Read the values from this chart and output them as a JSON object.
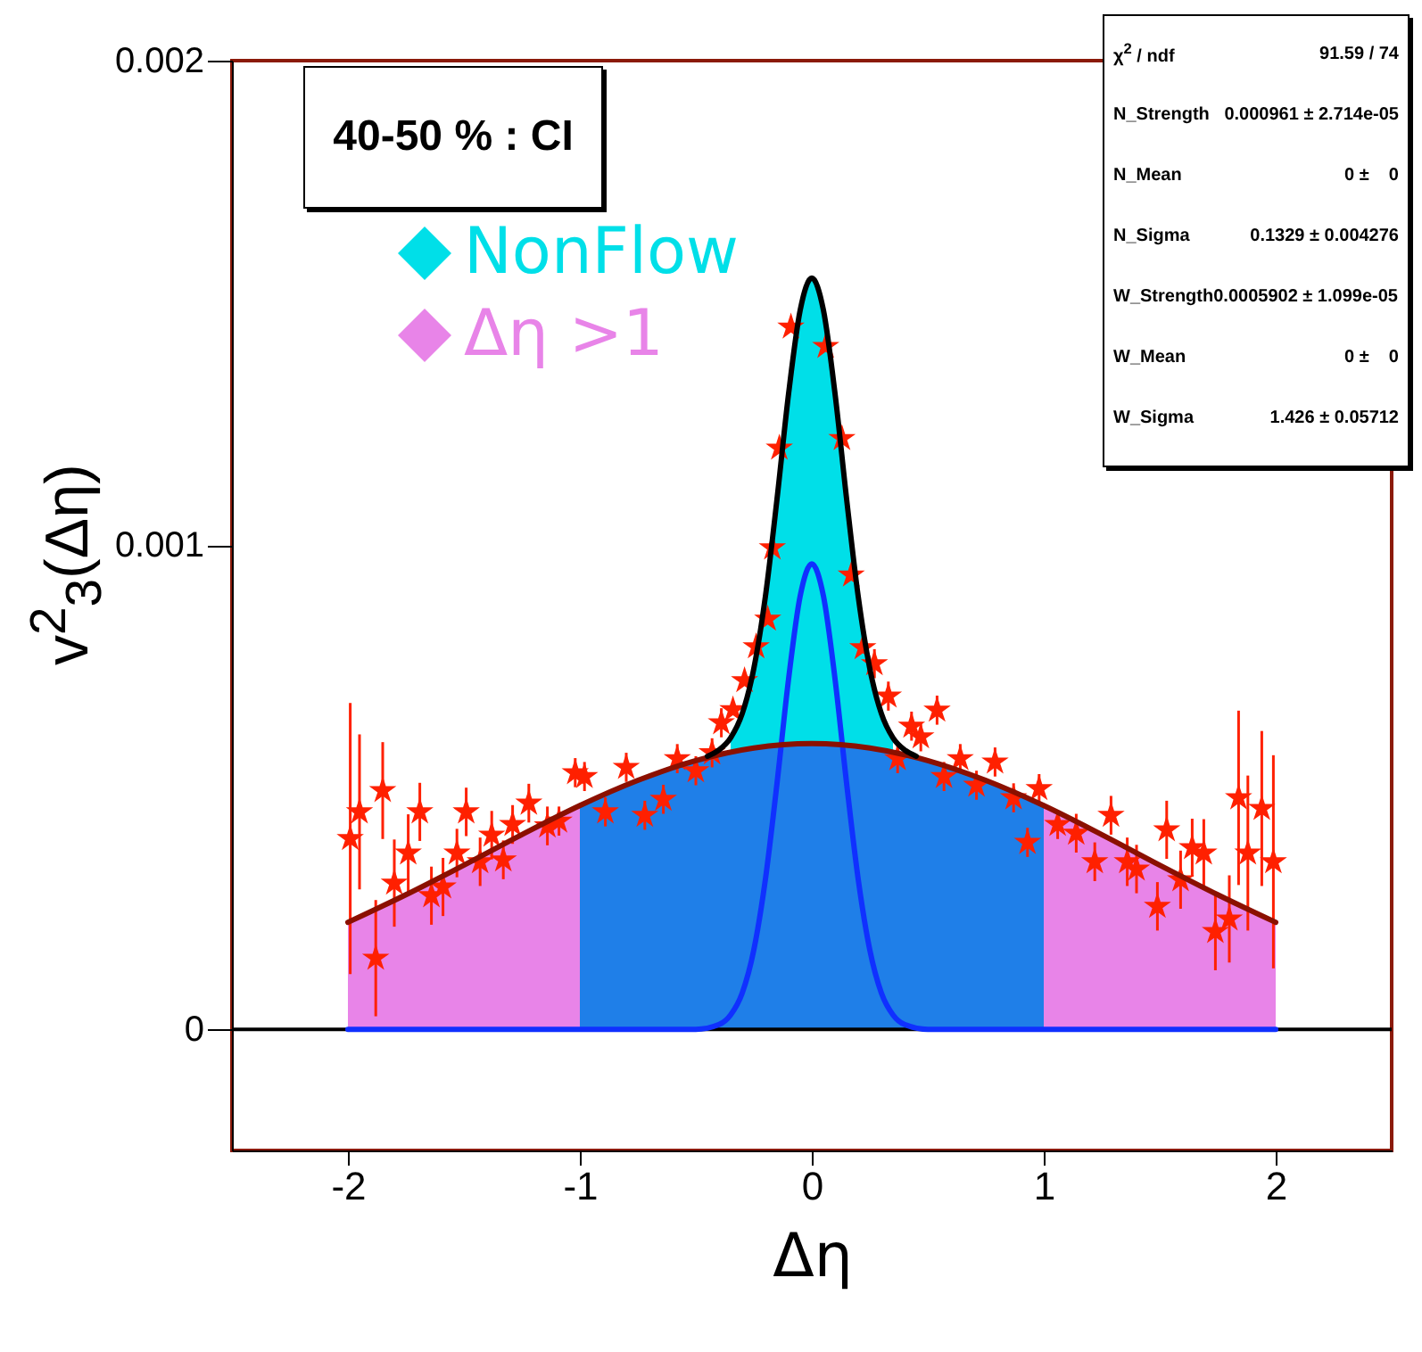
{
  "chart_data": {
    "type": "line",
    "title": "40-50 % : CI",
    "xlabel": "Δη",
    "ylabel": "v$^{2}$$_{3}$(Δη)",
    "annotations": [
      "χ$^{2}$ / ndf\t91.59 / 74",
      "N_Strength\t0.000961 ± 2.714e-05",
      "N_Mean\t0 ±    0",
      "N_Sigma\t0.1329 ± 0.004276",
      "W_Strength0.0005902 ± 1.099e-05",
      "W_Mean\t0 ±    0",
      "W_Sigma\t1.426 ± 0.05712"
    ],
    "xlim": [
      -2.5,
      2.5
    ],
    "xticks": [
      -2,
      -1,
      0,
      1,
      2
    ],
    "ylim": [
      -0.00025,
      0.002
    ],
    "yticks": [
      0,
      0.001,
      0.002
    ],
    "grid": false,
    "legend": "top left",
    "ref_lines": [
      {
        "axis": "y",
        "value": 0,
        "color": "#000000"
      }
    ],
    "series": [
      {
        "type": "area",
        "name": "NonFlow",
        "color": "#00dfe8",
        "x": [
          -0.35,
          -0.3,
          -0.25,
          -0.2,
          -0.15,
          -0.1,
          -0.05,
          0,
          0.05,
          0.1,
          0.15,
          0.2,
          0.25,
          0.3,
          0.35
        ],
        "values": [
          0.000602,
          0.000652,
          0.000745,
          0.000894,
          0.001095,
          0.001313,
          0.001485,
          0.001551,
          0.001485,
          0.001313,
          0.001095,
          0.000894,
          0.000745,
          0.000652,
          0.000602
        ]
      },
      {
        "type": "area",
        "name": "Δη >1",
        "color": "#e884e8",
        "x": [
          -2,
          -1.75,
          -1.5,
          -1.25,
          -1
        ],
        "values": [
          0.000221,
          0.000278,
          0.000339,
          0.000402,
          0.000462
        ]
      },
      {
        "type": "area",
        "color": "#e884e8",
        "x": [
          1,
          1.25,
          1.5,
          1.75,
          2
        ],
        "values": [
          0.000462,
          0.000402,
          0.000339,
          0.000278,
          0.000221
        ]
      },
      {
        "type": "area",
        "color": "#1f7fe8",
        "x": [
          -1,
          -0.75,
          -0.5,
          -0.25,
          0,
          0.25,
          0.5,
          0.75,
          1
        ],
        "values": [
          0.000462,
          0.000514,
          0.000555,
          0.000581,
          0.00059,
          0.000581,
          0.000555,
          0.000514,
          0.000462
        ]
      },
      {
        "color": "#1030ff",
        "x": [
          -2,
          -1,
          -0.6,
          -0.5,
          -0.4,
          -0.35,
          -0.3,
          -0.25,
          -0.2,
          -0.15,
          -0.1,
          -0.05,
          0,
          0.05,
          0.1,
          0.15,
          0.2,
          0.25,
          0.3,
          0.35,
          0.4,
          0.5,
          0.6,
          1,
          2
        ],
        "values": [
          0,
          0,
          0,
          0,
          1e-05,
          3e-05,
          7.5e-05,
          0.000164,
          0.00031,
          0.000508,
          0.000724,
          0.000895,
          0.000961,
          0.000895,
          0.000724,
          0.000508,
          0.00031,
          0.000164,
          7.5e-05,
          3e-05,
          1e-05,
          0,
          0,
          0,
          0
        ]
      },
      {
        "color": "#8b1000",
        "x": [
          -2,
          -1.75,
          -1.5,
          -1.25,
          -1,
          -0.75,
          -0.5,
          -0.25,
          0,
          0.25,
          0.5,
          0.75,
          1,
          1.25,
          1.5,
          1.75,
          2
        ],
        "values": [
          0.000221,
          0.000278,
          0.000339,
          0.000402,
          0.000462,
          0.000514,
          0.000555,
          0.000581,
          0.00059,
          0.000581,
          0.000555,
          0.000514,
          0.000462,
          0.000402,
          0.000339,
          0.000278,
          0.000221
        ]
      },
      {
        "color": "#000000",
        "x": [
          -0.45,
          -0.4,
          -0.35,
          -0.3,
          -0.25,
          -0.2,
          -0.15,
          -0.1,
          -0.05,
          0,
          0.05,
          0.1,
          0.15,
          0.2,
          0.25,
          0.3,
          0.35,
          0.4,
          0.45
        ],
        "values": [
          0.000564,
          0.000577,
          0.000602,
          0.000652,
          0.000745,
          0.000894,
          0.001095,
          0.001313,
          0.001485,
          0.001551,
          0.001485,
          0.001313,
          0.001095,
          0.000894,
          0.000745,
          0.000652,
          0.000602,
          0.000577,
          0.000564
        ]
      },
      {
        "type": "scatter",
        "color": "#ff2000",
        "marker": "star",
        "x": [
          -1.99,
          -1.95,
          -1.88,
          -1.85,
          -1.8,
          -1.74,
          -1.69,
          -1.64,
          -1.59,
          -1.53,
          -1.49,
          -1.43,
          -1.38,
          -1.33,
          -1.29,
          -1.22,
          -1.14,
          -1.09,
          -1.02,
          -0.98,
          -0.89,
          -0.8,
          -0.72,
          -0.64,
          -0.58,
          -0.5,
          -0.43,
          -0.39,
          -0.34,
          -0.29,
          -0.24,
          -0.19,
          -0.17,
          -0.14,
          -0.09,
          0.06,
          0.13,
          0.17,
          0.22,
          0.27,
          0.33,
          0.37,
          0.43,
          0.47,
          0.54,
          0.57,
          0.64,
          0.71,
          0.79,
          0.87,
          0.93,
          0.98,
          1.06,
          1.14,
          1.22,
          1.29,
          1.36,
          1.4,
          1.49,
          1.53,
          1.59,
          1.64,
          1.69,
          1.74,
          1.8,
          1.84,
          1.88,
          1.94,
          1.99
        ],
        "values": [
          0.000394,
          0.000449,
          0.000147,
          0.000493,
          0.000302,
          0.000364,
          0.000449,
          0.000276,
          0.000294,
          0.000364,
          0.000449,
          0.000346,
          0.000401,
          0.00035,
          0.000423,
          0.000467,
          0.00042,
          0.00043,
          0.00053,
          0.000522,
          0.000449,
          0.000541,
          0.000442,
          0.000475,
          0.000559,
          0.000534,
          0.000571,
          0.000633,
          0.00066,
          0.00072,
          0.00079,
          0.000847,
          0.000994,
          0.0012,
          0.00145,
          0.00141,
          0.00122,
          0.000938,
          0.000788,
          0.000755,
          0.000688,
          0.000559,
          0.000626,
          0.000604,
          0.000659,
          0.000522,
          0.000559,
          0.000504,
          0.000552,
          0.000478,
          0.000386,
          0.000497,
          0.000423,
          0.000405,
          0.000346,
          0.000442,
          0.000346,
          0.000331,
          0.000254,
          0.000412,
          0.000309,
          0.000375,
          0.000364,
          0.000202,
          0.000228,
          0.000478,
          0.000364,
          0.000456,
          0.000346
        ],
        "errors": [
          0.00028,
          0.00016,
          0.00012,
          0.0001,
          9e-05,
          8e-05,
          6e-05,
          6e-05,
          6e-05,
          5e-05,
          5e-05,
          5e-05,
          5e-05,
          4e-05,
          4e-05,
          4e-05,
          4e-05,
          3e-05,
          3e-05,
          3e-05,
          3e-05,
          3e-05,
          3e-05,
          3e-05,
          3e-05,
          3e-05,
          3e-05,
          3e-05,
          null,
          null,
          null,
          null,
          null,
          null,
          null,
          null,
          null,
          null,
          null,
          3e-05,
          3e-05,
          3e-05,
          3e-05,
          3e-05,
          3e-05,
          3e-05,
          3e-05,
          3e-05,
          3e-05,
          3e-05,
          3e-05,
          3e-05,
          3e-05,
          4e-05,
          4e-05,
          4e-05,
          5e-05,
          5e-05,
          5e-05,
          6e-05,
          6e-05,
          6e-05,
          7e-05,
          8e-05,
          9e-05,
          0.00018,
          0.00016,
          0.00016,
          0.00022
        ]
      }
    ]
  }
}
